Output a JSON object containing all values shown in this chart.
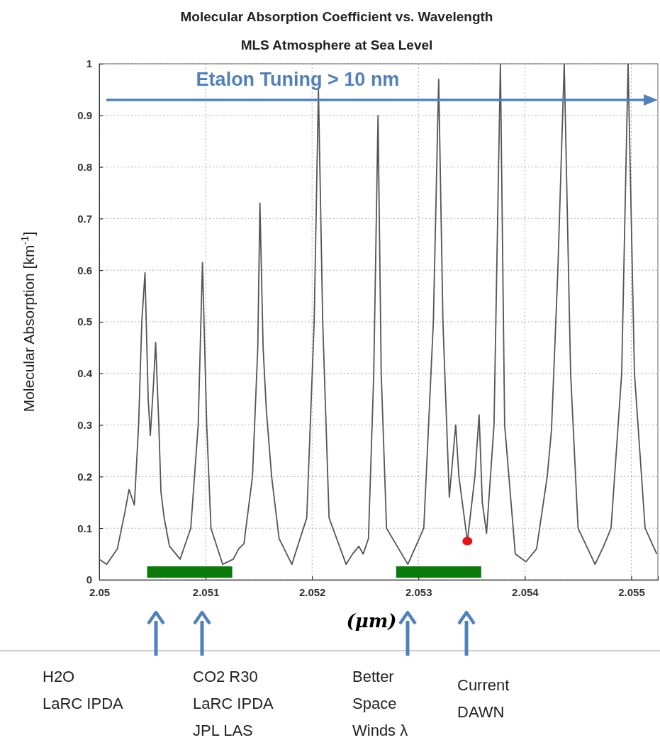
{
  "chart_data": {
    "type": "line",
    "title": "Molecular Absorption  Coefficient vs. Wavelength",
    "subtitle": "MLS Atmosphere at Sea Level",
    "xlabel": "(μm)",
    "ylabel": "Molecular Absorption [km$^{-1}$]",
    "xlim": [
      2.05,
      2.05525
    ],
    "xticks": [
      2.05,
      2.051,
      2.052,
      2.053,
      2.054,
      2.055
    ],
    "ylim": [
      0,
      1
    ],
    "yticks": [
      0,
      0.1,
      0.2,
      0.3,
      0.4,
      0.5,
      0.6,
      0.7,
      0.8,
      0.9,
      1
    ],
    "grid": true,
    "series": [
      {
        "color": "#555555",
        "x": [
          2.05,
          2.05007,
          2.05017,
          2.05024,
          2.05028,
          2.05033,
          2.05037,
          2.0504,
          2.05043,
          2.05046,
          2.05048,
          2.05051,
          2.05053,
          2.05056,
          2.05058,
          2.05061,
          2.05066,
          2.05076,
          2.05086,
          2.05093,
          2.05097,
          2.05101,
          2.05105,
          2.05116,
          2.05126,
          2.05131,
          2.05136,
          2.05144,
          2.05149,
          2.05151,
          2.05154,
          2.05157,
          2.05162,
          2.05169,
          2.05181,
          2.05195,
          2.05202,
          2.05206,
          2.0521,
          2.05216,
          2.05232,
          2.05238,
          2.05244,
          2.05248,
          2.05253,
          2.05258,
          2.05262,
          2.05265,
          2.0527,
          2.0529,
          2.05305,
          2.05314,
          2.05319,
          2.05323,
          2.05329,
          2.05335,
          2.05338,
          2.05346,
          2.05353,
          2.05357,
          2.0536,
          2.05364,
          2.05371,
          2.05377,
          2.05381,
          2.05391,
          2.05401,
          2.05411,
          2.05421,
          2.05425,
          2.05431,
          2.05437,
          2.05443,
          2.0545,
          2.05466,
          2.05474,
          2.05481,
          2.05491,
          2.05497,
          2.05503,
          2.05513,
          2.05524
        ],
        "values": [
          0.04,
          0.03,
          0.06,
          0.13,
          0.175,
          0.145,
          0.3,
          0.5,
          0.595,
          0.35,
          0.28,
          0.38,
          0.46,
          0.3,
          0.17,
          0.12,
          0.065,
          0.04,
          0.1,
          0.3,
          0.615,
          0.3,
          0.1,
          0.03,
          0.04,
          0.06,
          0.07,
          0.2,
          0.45,
          0.73,
          0.45,
          0.33,
          0.2,
          0.08,
          0.03,
          0.12,
          0.5,
          0.95,
          0.5,
          0.12,
          0.03,
          0.05,
          0.065,
          0.05,
          0.08,
          0.4,
          0.9,
          0.4,
          0.1,
          0.03,
          0.1,
          0.5,
          0.97,
          0.5,
          0.16,
          0.3,
          0.2,
          0.075,
          0.2,
          0.32,
          0.15,
          0.09,
          0.3,
          1,
          0.3,
          0.05,
          0.035,
          0.06,
          0.2,
          0.29,
          0.6,
          1,
          0.4,
          0.1,
          0.03,
          0.065,
          0.1,
          0.4,
          1,
          0.4,
          0.1,
          0.05
        ]
      },
      {
        "type": "scatter",
        "color": "#ee1111",
        "marker": "circle",
        "x": [
          2.05346
        ],
        "values": [
          0.075
        ]
      },
      {
        "color": "#0a7a0a",
        "line_style": "solid",
        "x": [
          2.05045,
          2.05125
        ],
        "values": [
          0.015,
          0.015
        ]
      },
      {
        "color": "#0a7a0a",
        "line_style": "solid",
        "x": [
          2.05279,
          2.05359
        ],
        "values": [
          0.015,
          0.015
        ]
      }
    ],
    "ref_lines": [
      {
        "axis": "y",
        "value": 0.93,
        "label": "Etalon Tuning > 10 nm",
        "color": "#4f81bd"
      }
    ],
    "annotations": [
      "H2O\nLaRC IPDA",
      "CO2 R30\nLaRC IPDA\nJPL LAS",
      "Better\nSpace\nWinds λ",
      "Current\nDAWN"
    ]
  }
}
